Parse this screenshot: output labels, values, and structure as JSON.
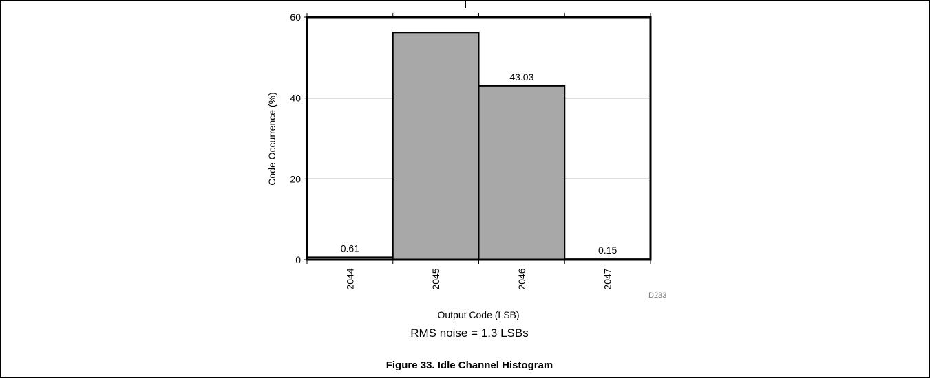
{
  "chart_data": {
    "type": "bar",
    "categories": [
      "2044",
      "2045",
      "2046",
      "2047"
    ],
    "values": [
      0.61,
      56.21,
      43.03,
      0.15
    ],
    "data_labels": [
      "0.61",
      "",
      "43.03",
      "0.15"
    ],
    "xlabel": "Output Code (LSB)",
    "ylabel": "Code Occurrence (%)",
    "ylim": [
      0,
      60
    ],
    "yticks": [
      0,
      20,
      40,
      60
    ],
    "grid": true,
    "bar_color": "#a8a8a8",
    "annotation": "D233"
  },
  "caption": {
    "note": "RMS noise = 1.3 LSBs",
    "figure_title": "Figure 33. Idle Channel Histogram"
  }
}
